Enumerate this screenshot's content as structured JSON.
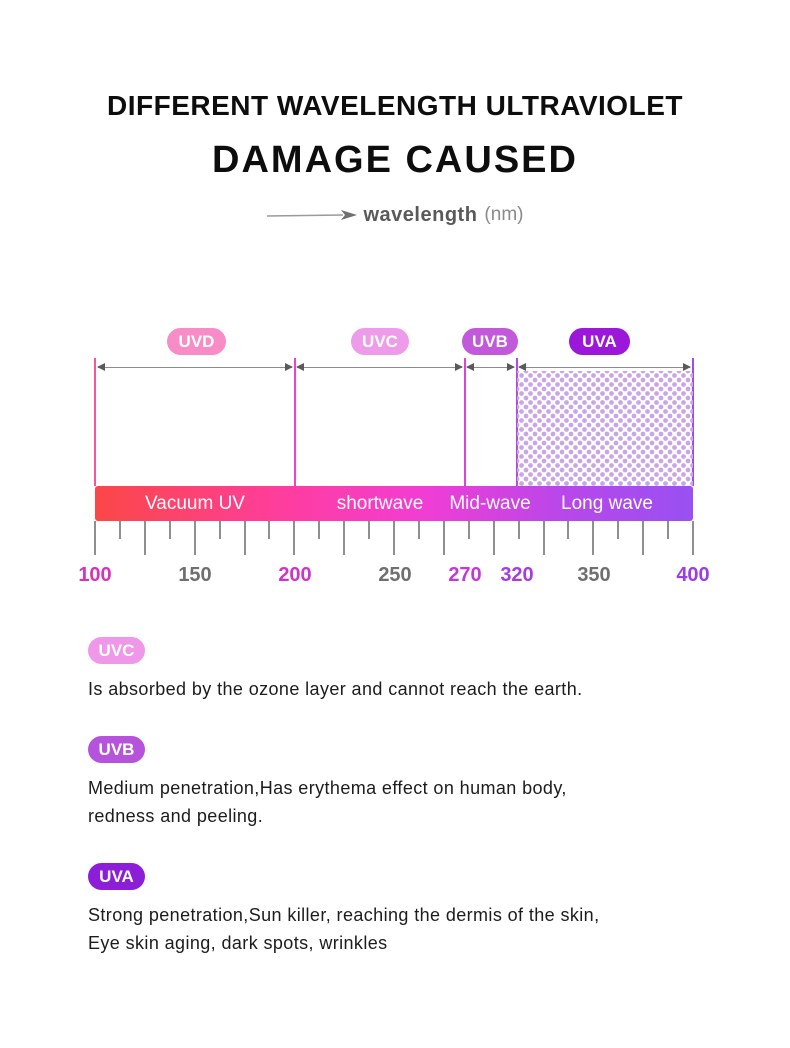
{
  "page": {
    "title_line1": "DIFFERENT WAVELENGTH ULTRAVIOLET",
    "title_line2": "DAMAGE CAUSED",
    "axis_caption": {
      "word": "wavelength",
      "unit": "(nm)"
    }
  },
  "diagram": {
    "bands": [
      {
        "name": "UVD",
        "badge_color": "#f88cc6",
        "bar_label": "Vacuum UV",
        "range_nm": [
          100,
          200
        ]
      },
      {
        "name": "UVC",
        "badge_color": "#ee9ce9",
        "bar_label": "shortwave",
        "range_nm": [
          200,
          270
        ]
      },
      {
        "name": "UVB",
        "badge_color": "#c258da",
        "bar_label": "Mid-wave",
        "range_nm": [
          270,
          320
        ]
      },
      {
        "name": "UVA",
        "badge_color": "#9b17d9",
        "bar_label": "Long wave",
        "range_nm": [
          320,
          400
        ]
      }
    ],
    "colors": {
      "bar_gradient": [
        "#fc4747",
        "#fe3da2",
        "#f13dd4",
        "#b947ea",
        "#9950f2"
      ],
      "boundary_colors": [
        "#f5569f",
        "#ee41cd",
        "#d844dc",
        "#b847e6",
        "#9b4cee"
      ],
      "dot_fill": "#c9a4e8"
    },
    "tick_labels": [
      {
        "text": "100",
        "color": "#d633b8"
      },
      {
        "text": "150",
        "color": "#6f6f6f"
      },
      {
        "text": "200",
        "color": "#cc35c6"
      },
      {
        "text": "250",
        "color": "#6f6f6f"
      },
      {
        "text": "270",
        "color": "#c238d8"
      },
      {
        "text": "320",
        "color": "#a83be0"
      },
      {
        "text": "350",
        "color": "#6f6f6f"
      },
      {
        "text": "400",
        "color": "#9a3ee8"
      }
    ]
  },
  "sections": [
    {
      "badge": "UVC",
      "badge_color": "#ef97e8",
      "lines": [
        "Is absorbed by the ozone layer and cannot reach the earth."
      ]
    },
    {
      "badge": "UVB",
      "badge_color": "#b553dc",
      "lines": [
        "Medium penetration,Has erythema effect on human body,",
        "redness and peeling."
      ]
    },
    {
      "badge": "UVA",
      "badge_color": "#8d1ed8",
      "lines": [
        "Strong penetration,Sun killer, reaching the dermis of the skin,",
        "Eye skin aging, dark spots, wrinkles"
      ]
    }
  ]
}
